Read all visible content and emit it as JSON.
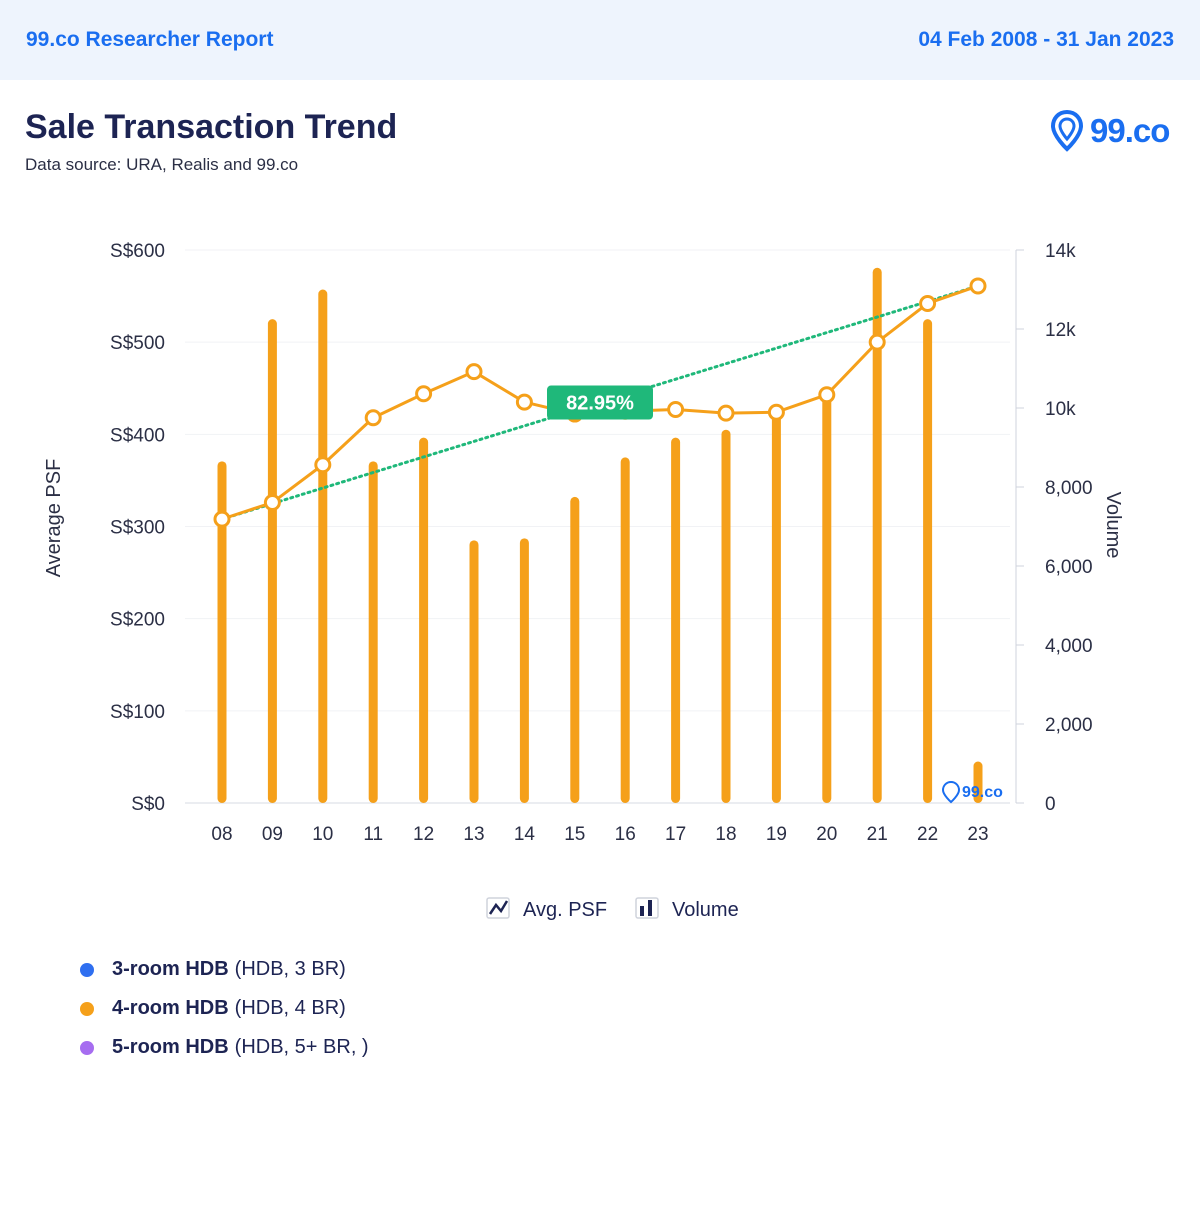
{
  "header": {
    "report_label": "99.co Researcher Report",
    "date_range": "04 Feb 2008 - 31 Jan 2023"
  },
  "title": "Sale Transaction Trend",
  "subtitle": "Data source: URA, Realis and 99.co",
  "logo_text": "99.co",
  "watermark_text": "99.co",
  "colors": {
    "brand": "#1a6ef0",
    "series_orange": "#f5a01a",
    "trend_green": "#1fb87a",
    "three_room": "#2f6ff0",
    "four_room": "#f5a01a",
    "five_room": "#a66df0"
  },
  "chart_data": {
    "type": "bar",
    "x": [
      "08",
      "09",
      "10",
      "11",
      "12",
      "13",
      "14",
      "15",
      "16",
      "17",
      "18",
      "19",
      "20",
      "21",
      "22",
      "23"
    ],
    "left_axis": {
      "label": "Average PSF",
      "ticks": [
        "S$0",
        "S$100",
        "S$200",
        "S$300",
        "S$400",
        "S$500",
        "S$600"
      ],
      "ylim": [
        0,
        600
      ]
    },
    "right_axis": {
      "label": "Volume",
      "ticks": [
        "0",
        "2,000",
        "4,000",
        "6,000",
        "8,000",
        "10k",
        "12k",
        "14k"
      ],
      "ylim": [
        0,
        14000
      ]
    },
    "series": [
      {
        "name": "Volume",
        "type": "bar",
        "axis": "right",
        "values": [
          8650,
          12250,
          13000,
          8650,
          9250,
          6650,
          6700,
          7750,
          8750,
          9250,
          9450,
          9850,
          10300,
          13550,
          12250,
          1050
        ]
      },
      {
        "name": "Avg. PSF",
        "type": "line",
        "axis": "left",
        "values": [
          308,
          326,
          367,
          418,
          444,
          468,
          435,
          422,
          425,
          427,
          423,
          424,
          443,
          500,
          542,
          561
        ]
      }
    ],
    "trend_line": {
      "from_index": 0,
      "to_index": 15,
      "label": "82.95%"
    },
    "legend": [
      "Avg. PSF",
      "Volume"
    ],
    "grid": true
  },
  "chart_legend": {
    "psf_label": "Avg. PSF",
    "volume_label": "Volume"
  },
  "unit_legend": [
    {
      "name": "3-room HDB",
      "detail": "(HDB, 3 BR)"
    },
    {
      "name": "4-room HDB",
      "detail": "(HDB, 4 BR)"
    },
    {
      "name": "5-room HDB",
      "detail": "(HDB, 5+ BR, )"
    }
  ]
}
